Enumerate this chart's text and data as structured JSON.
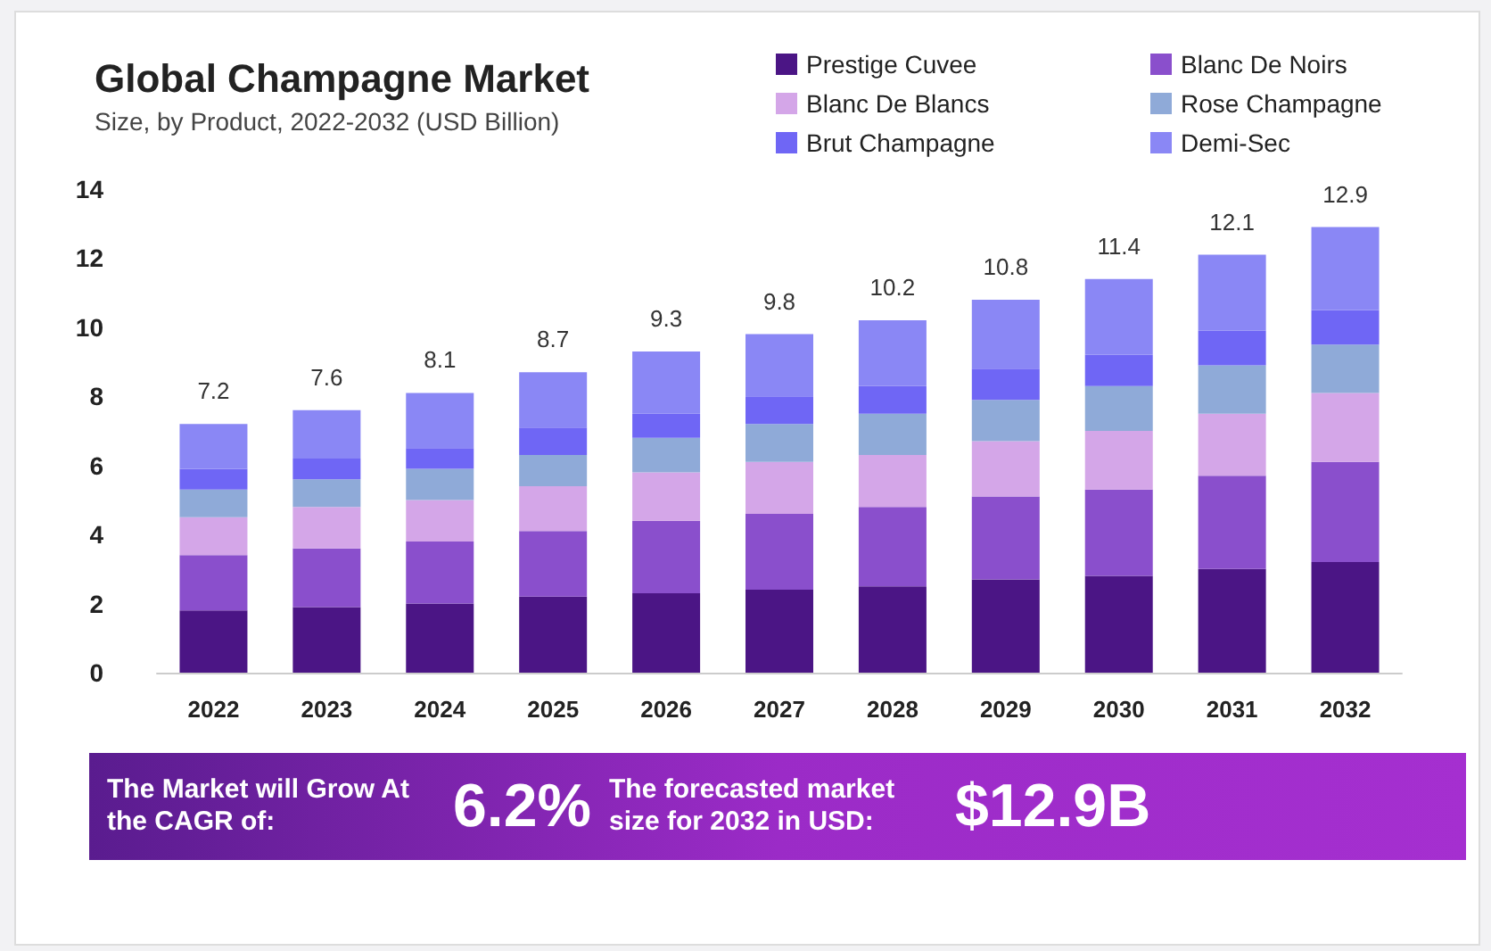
{
  "chart_data": {
    "type": "bar",
    "title": "Global Champagne Market",
    "subtitle": "Size, by Product, 2022-2032 (USD Billion)",
    "categories": [
      "2022",
      "2023",
      "2024",
      "2025",
      "2026",
      "2027",
      "2028",
      "2029",
      "2030",
      "2031",
      "2032"
    ],
    "series": [
      {
        "name": "Prestige Cuvee",
        "color": "#4b1585",
        "values": [
          1.8,
          1.9,
          2.0,
          2.2,
          2.3,
          2.4,
          2.5,
          2.7,
          2.8,
          3.0,
          3.2
        ]
      },
      {
        "name": "Blanc De Noirs",
        "color": "#8a4fcc",
        "values": [
          1.6,
          1.7,
          1.8,
          1.9,
          2.1,
          2.2,
          2.3,
          2.4,
          2.5,
          2.7,
          2.9
        ]
      },
      {
        "name": "Blanc De Blancs",
        "color": "#d4a6e8",
        "values": [
          1.1,
          1.2,
          1.2,
          1.3,
          1.4,
          1.5,
          1.5,
          1.6,
          1.7,
          1.8,
          2.0
        ]
      },
      {
        "name": "Rose Champagne",
        "color": "#8faad8",
        "values": [
          0.8,
          0.8,
          0.9,
          0.9,
          1.0,
          1.1,
          1.2,
          1.2,
          1.3,
          1.4,
          1.4
        ]
      },
      {
        "name": "Brut Champagne",
        "color": "#6f66f5",
        "values": [
          0.6,
          0.6,
          0.6,
          0.8,
          0.7,
          0.8,
          0.8,
          0.9,
          0.9,
          1.0,
          1.0
        ]
      },
      {
        "name": "Demi-Sec",
        "color": "#8a87f5",
        "values": [
          1.3,
          1.4,
          1.6,
          1.6,
          1.8,
          1.8,
          1.9,
          2.0,
          2.2,
          2.2,
          2.4
        ]
      }
    ],
    "stacked": true,
    "totals": [
      "7.2",
      "7.6",
      "8.1",
      "8.7",
      "9.3",
      "9.8",
      "10.2",
      "10.8",
      "11.4",
      "12.1",
      "12.9"
    ],
    "ylim": [
      0,
      14
    ],
    "yticks": [
      0,
      2,
      4,
      6,
      8,
      10,
      12,
      14
    ],
    "grid": false,
    "legend": "top right",
    "annotations": [
      "The Market will Grow At the CAGR of:",
      "6.2%",
      "The forecasted market size for 2032 in USD:",
      "$12.9B"
    ]
  }
}
